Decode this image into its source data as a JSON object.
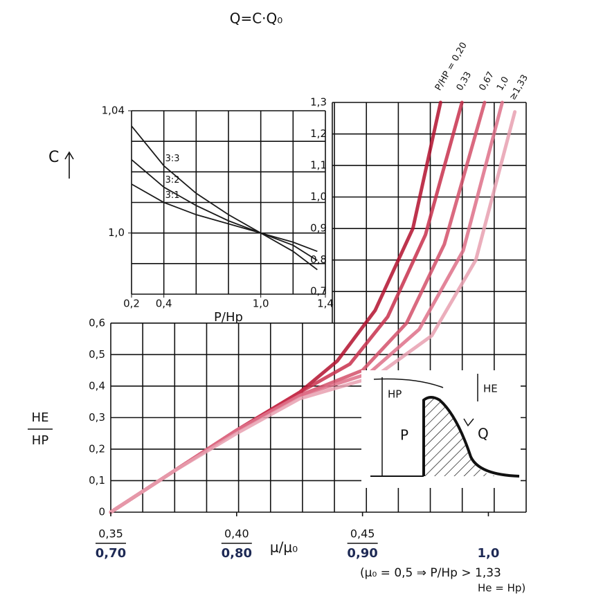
{
  "title": "Q=C·Q₀",
  "note": [
    "(μ₀ = 0,5 ⇒ P/Hp > 1,33",
    "He = Hp)"
  ],
  "sketch_labels": {
    "hp": "HP",
    "he": "HE",
    "p": "P",
    "q": "Q"
  },
  "chart_data": [
    {
      "type": "line",
      "xlabel": "P/Hp",
      "ylabel": "C",
      "xlim": [
        0.2,
        1.4
      ],
      "ylim": [
        0.98,
        1.04
      ],
      "xticks": [
        {
          "value": 0.2,
          "label": "0,2"
        },
        {
          "value": 0.4,
          "label": "0,4"
        },
        {
          "value": 1.0,
          "label": "1,0"
        },
        {
          "value": 1.4,
          "label": "1,4"
        }
      ],
      "yticks": [
        {
          "value": 1.04,
          "label": "1,04"
        },
        {
          "value": 1.0,
          "label": "1,0"
        }
      ],
      "x": [
        0.2,
        0.4,
        0.6,
        0.8,
        1.0,
        1.2,
        1.35
      ],
      "series": [
        {
          "name": "3:3",
          "color": "#1a1a1a",
          "values": [
            1.035,
            1.022,
            1.013,
            1.006,
            1.0,
            0.994,
            0.988
          ]
        },
        {
          "name": "3:2",
          "color": "#1a1a1a",
          "values": [
            1.024,
            1.015,
            1.009,
            1.004,
            1.0,
            0.996,
            0.991
          ]
        },
        {
          "name": "3:1",
          "color": "#1a1a1a",
          "values": [
            1.016,
            1.01,
            1.006,
            1.003,
            1.0,
            0.997,
            0.994
          ]
        }
      ]
    },
    {
      "type": "line",
      "xlabel": "μ/μ₀",
      "ylabel": [
        "HE",
        "HP"
      ],
      "xlim": [
        0.7,
        1.03
      ],
      "x2lim": [
        0.35,
        0.515
      ],
      "ylim": [
        0,
        1.3
      ],
      "xticks": [
        {
          "value": 0.7,
          "label": "0,70"
        },
        {
          "value": 0.8,
          "label": "0,80"
        },
        {
          "value": 0.9,
          "label": "0,90"
        },
        {
          "value": 1.0,
          "label": "1,0"
        }
      ],
      "x2ticks": [
        {
          "value": 0.35,
          "label": "0,35"
        },
        {
          "value": 0.4,
          "label": "0,40"
        },
        {
          "value": 0.45,
          "label": "0,45"
        }
      ],
      "yticks": [
        0,
        {
          "value": 0.1,
          "label": "0,1"
        },
        {
          "value": 0.2,
          "label": "0,2"
        },
        {
          "value": 0.3,
          "label": "0,3"
        },
        {
          "value": 0.4,
          "label": "0,4"
        },
        {
          "value": 0.5,
          "label": "0,5"
        },
        {
          "value": 0.6,
          "label": "0,6"
        },
        {
          "value": 0.7,
          "label": "0,7"
        },
        {
          "value": 0.8,
          "label": "0,8"
        },
        {
          "value": 0.9,
          "label": "0,9"
        },
        {
          "value": 1.0,
          "label": "1,0"
        },
        {
          "value": 1.1,
          "label": "1,1"
        },
        {
          "value": 1.2,
          "label": "1,2"
        },
        {
          "value": 1.3,
          "label": "1,3"
        }
      ],
      "series": [
        {
          "name": "P/HP = 0,20",
          "color": "#b3102e",
          "x": [
            0.7,
            0.75,
            0.8,
            0.85,
            0.88,
            0.91,
            0.94,
            0.962
          ],
          "values": [
            0,
            0.13,
            0.26,
            0.38,
            0.48,
            0.64,
            0.9,
            1.3
          ]
        },
        {
          "name": "0,33",
          "color": "#c8304c",
          "x": [
            0.7,
            0.75,
            0.8,
            0.85,
            0.89,
            0.92,
            0.95,
            0.979
          ],
          "values": [
            0,
            0.13,
            0.26,
            0.38,
            0.47,
            0.62,
            0.88,
            1.3
          ]
        },
        {
          "name": "0,67",
          "color": "#d4506a",
          "x": [
            0.7,
            0.75,
            0.8,
            0.85,
            0.9,
            0.935,
            0.965,
            0.997
          ],
          "values": [
            0,
            0.13,
            0.26,
            0.37,
            0.45,
            0.6,
            0.85,
            1.3
          ]
        },
        {
          "name": "1,0",
          "color": "#de7088",
          "x": [
            0.7,
            0.75,
            0.8,
            0.85,
            0.905,
            0.945,
            0.98,
            1.011
          ],
          "values": [
            0,
            0.13,
            0.26,
            0.37,
            0.44,
            0.58,
            0.83,
            1.3
          ]
        },
        {
          "name": "≥1,33",
          "color": "#e8a0b0",
          "x": [
            0.7,
            0.75,
            0.8,
            0.85,
            0.91,
            0.955,
            0.99,
            1.021
          ],
          "values": [
            0,
            0.13,
            0.25,
            0.36,
            0.43,
            0.56,
            0.8,
            1.27
          ]
        }
      ]
    }
  ]
}
